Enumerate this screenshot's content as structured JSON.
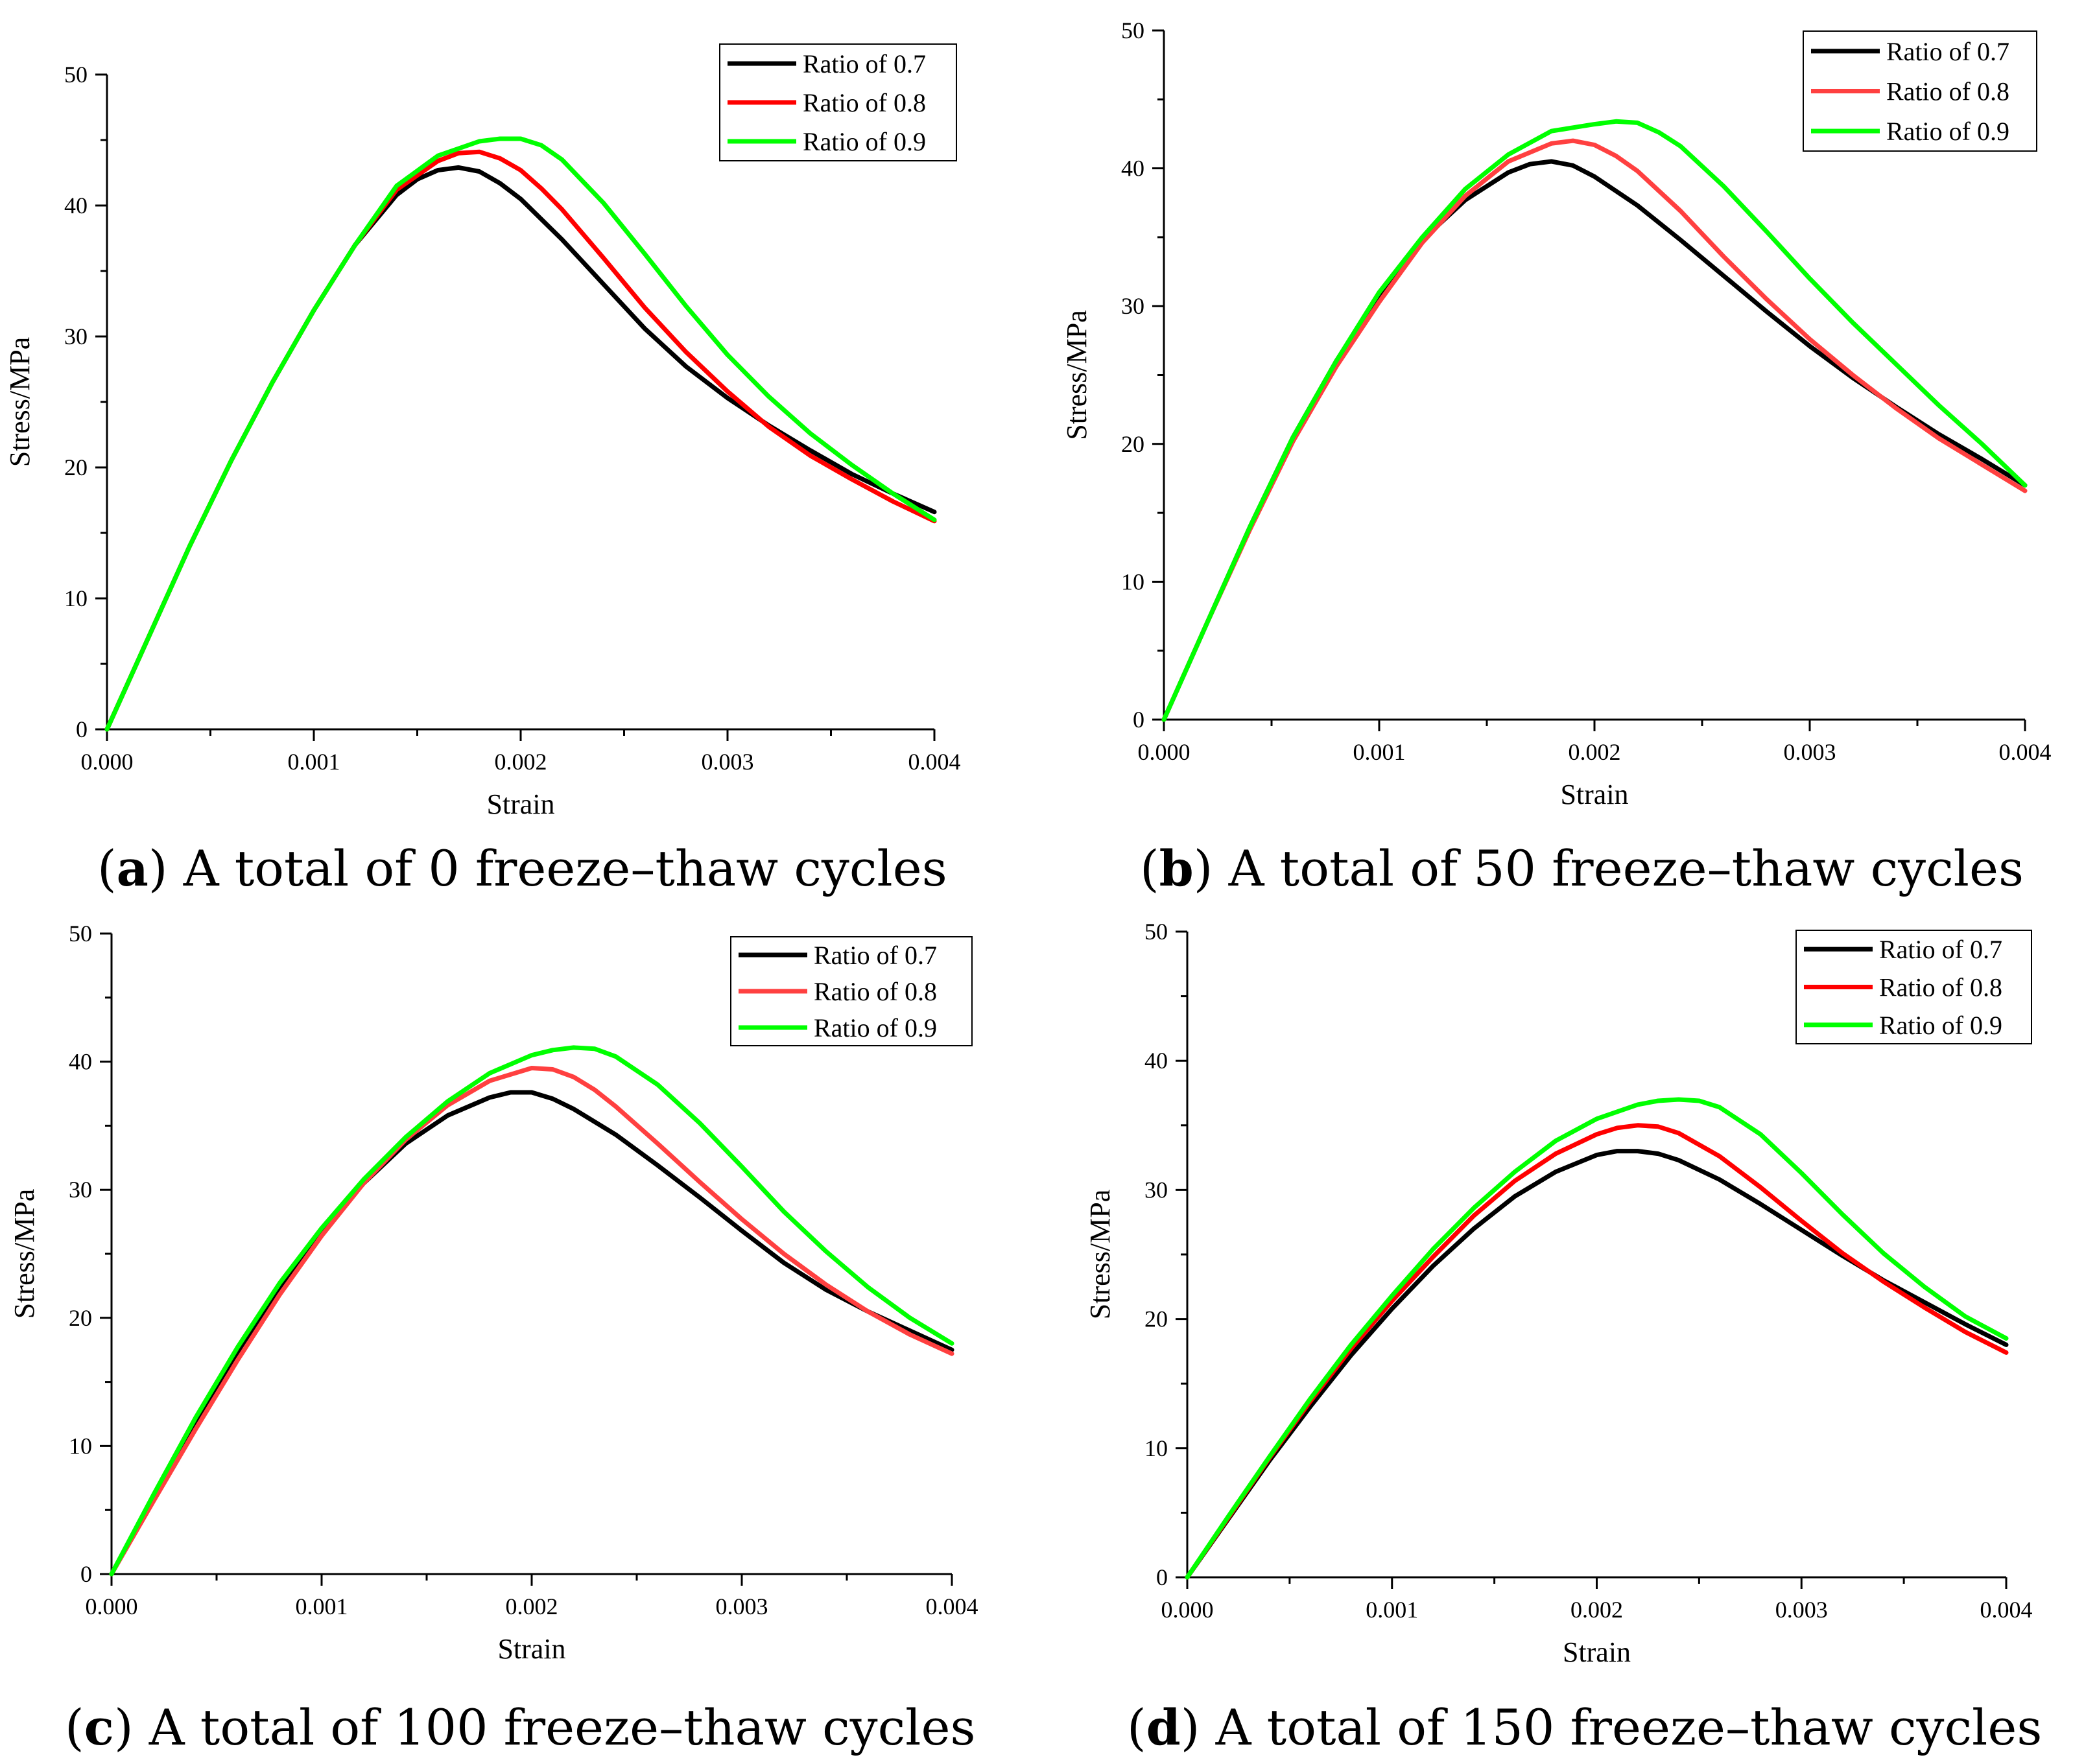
{
  "chart_data": [
    {
      "type": "line",
      "caption_letter": "a",
      "caption_text": " A total of 0 freeze–thaw cycles",
      "xlabel": "Strain",
      "ylabel": "Stress/MPa",
      "xlim": [
        0,
        0.004
      ],
      "ylim": [
        0,
        50
      ],
      "xticks": [
        "0.000",
        "0.001",
        "0.002",
        "0.003",
        "0.004"
      ],
      "yticks": [
        "0",
        "10",
        "20",
        "30",
        "40",
        "50"
      ],
      "legend_position": "top-right",
      "series": [
        {
          "name": "Ratio of 0.7",
          "color": "#000000",
          "x": [
            0,
            0.0002,
            0.0004,
            0.0006,
            0.0008,
            0.001,
            0.0012,
            0.0014,
            0.0015,
            0.0016,
            0.0017,
            0.0018,
            0.0019,
            0.002,
            0.0022,
            0.0024,
            0.0026,
            0.0028,
            0.003,
            0.0032,
            0.0034,
            0.0036,
            0.0038,
            0.004
          ],
          "y": [
            0,
            7,
            14,
            20.5,
            26.5,
            32,
            37,
            40.8,
            42,
            42.7,
            42.9,
            42.6,
            41.7,
            40.5,
            37.4,
            34,
            30.6,
            27.7,
            25.3,
            23.2,
            21.3,
            19.5,
            18,
            16.6
          ]
        },
        {
          "name": "Ratio of 0.8",
          "color": "#ff0000",
          "x": [
            0,
            0.0002,
            0.0004,
            0.0006,
            0.0008,
            0.001,
            0.0012,
            0.0014,
            0.0016,
            0.0017,
            0.0018,
            0.0019,
            0.002,
            0.0021,
            0.0022,
            0.0024,
            0.0026,
            0.0028,
            0.003,
            0.0032,
            0.0034,
            0.0036,
            0.0038,
            0.004
          ],
          "y": [
            0,
            7,
            14,
            20.5,
            26.5,
            32,
            37,
            41.2,
            43.4,
            44,
            44.1,
            43.6,
            42.7,
            41.3,
            39.7,
            36,
            32.2,
            28.8,
            25.8,
            23.1,
            20.9,
            19.1,
            17.4,
            15.9
          ]
        },
        {
          "name": "Ratio of 0.9",
          "color": "#00ff00",
          "x": [
            0,
            0.0002,
            0.0004,
            0.0006,
            0.0008,
            0.001,
            0.0012,
            0.0014,
            0.0016,
            0.0018,
            0.0019,
            0.002,
            0.0021,
            0.0022,
            0.0024,
            0.0026,
            0.0028,
            0.003,
            0.0032,
            0.0034,
            0.0036,
            0.0038,
            0.004
          ],
          "y": [
            0,
            7,
            14,
            20.5,
            26.5,
            32,
            37,
            41.5,
            43.8,
            44.9,
            45.1,
            45.1,
            44.6,
            43.5,
            40.2,
            36.3,
            32.3,
            28.6,
            25.4,
            22.6,
            20.2,
            18,
            16
          ]
        }
      ]
    },
    {
      "type": "line",
      "caption_letter": "b",
      "caption_text": " A total of 50 freeze–thaw cycles",
      "xlabel": "Strain",
      "ylabel": "Stress/MPa",
      "xlim": [
        0,
        0.004
      ],
      "ylim": [
        0,
        50
      ],
      "xticks": [
        "0.000",
        "0.001",
        "0.002",
        "0.003",
        "0.004"
      ],
      "yticks": [
        "0",
        "10",
        "20",
        "30",
        "40",
        "50"
      ],
      "legend_position": "top-right",
      "series": [
        {
          "name": "Ratio of 0.7",
          "color": "#000000",
          "x": [
            0,
            0.0002,
            0.0004,
            0.0006,
            0.0008,
            0.001,
            0.0012,
            0.0014,
            0.0016,
            0.0017,
            0.0018,
            0.0019,
            0.002,
            0.0022,
            0.0024,
            0.0026,
            0.0028,
            0.003,
            0.0032,
            0.0034,
            0.0036,
            0.0038,
            0.004
          ],
          "y": [
            0,
            7,
            14,
            20.5,
            26,
            30.8,
            34.8,
            37.7,
            39.7,
            40.3,
            40.5,
            40.2,
            39.4,
            37.3,
            34.8,
            32.2,
            29.6,
            27.1,
            24.8,
            22.7,
            20.7,
            18.9,
            17
          ]
        },
        {
          "name": "Ratio of 0.8",
          "color": "#ff4040",
          "x": [
            0,
            0.0002,
            0.0004,
            0.0006,
            0.0008,
            0.001,
            0.0012,
            0.0014,
            0.0016,
            0.0018,
            0.0019,
            0.002,
            0.0021,
            0.0022,
            0.0024,
            0.0026,
            0.0028,
            0.003,
            0.0032,
            0.0034,
            0.0036,
            0.0038,
            0.004
          ],
          "y": [
            0,
            7,
            13.8,
            20.2,
            25.6,
            30.3,
            34.6,
            38,
            40.5,
            41.8,
            42,
            41.7,
            40.9,
            39.8,
            36.9,
            33.6,
            30.5,
            27.6,
            25,
            22.6,
            20.4,
            18.5,
            16.6
          ]
        },
        {
          "name": "Ratio of 0.9",
          "color": "#00ff00",
          "x": [
            0,
            0.0002,
            0.0004,
            0.0006,
            0.0008,
            0.001,
            0.0012,
            0.0014,
            0.0016,
            0.0018,
            0.002,
            0.0021,
            0.0022,
            0.0023,
            0.0024,
            0.0026,
            0.0028,
            0.003,
            0.0032,
            0.0034,
            0.0036,
            0.0038,
            0.004
          ],
          "y": [
            0,
            7,
            14,
            20.5,
            26,
            31,
            35,
            38.5,
            41,
            42.7,
            43.2,
            43.4,
            43.3,
            42.6,
            41.6,
            38.7,
            35.4,
            32,
            28.8,
            25.8,
            22.8,
            20,
            17
          ]
        }
      ]
    },
    {
      "type": "line",
      "caption_letter": "c",
      "caption_text": " A total of 100 freeze–thaw cycles",
      "xlabel": "Strain",
      "ylabel": "Stress/MPa",
      "xlim": [
        0,
        0.004
      ],
      "ylim": [
        0,
        50
      ],
      "xticks": [
        "0.000",
        "0.001",
        "0.002",
        "0.003",
        "0.004"
      ],
      "yticks": [
        "0",
        "10",
        "20",
        "30",
        "40",
        "50"
      ],
      "legend_position": "top-right",
      "series": [
        {
          "name": "Ratio of 0.7",
          "color": "#000000",
          "x": [
            0,
            0.0002,
            0.0004,
            0.0006,
            0.0008,
            0.001,
            0.0012,
            0.0014,
            0.0016,
            0.0018,
            0.0019,
            0.002,
            0.0021,
            0.0022,
            0.0024,
            0.0026,
            0.0028,
            0.003,
            0.0032,
            0.0034,
            0.0036,
            0.0038,
            0.004
          ],
          "y": [
            0,
            6,
            11.8,
            17.2,
            22.2,
            26.7,
            30.5,
            33.6,
            35.8,
            37.2,
            37.6,
            37.6,
            37.1,
            36.3,
            34.3,
            31.9,
            29.4,
            26.8,
            24.3,
            22.2,
            20.5,
            19,
            17.5
          ]
        },
        {
          "name": "Ratio of 0.8",
          "color": "#ff4040",
          "x": [
            0,
            0.0002,
            0.0004,
            0.0006,
            0.0008,
            0.001,
            0.0012,
            0.0014,
            0.0016,
            0.0018,
            0.002,
            0.0021,
            0.0022,
            0.0023,
            0.0024,
            0.0026,
            0.0028,
            0.003,
            0.0032,
            0.0034,
            0.0036,
            0.0038,
            0.004
          ],
          "y": [
            0,
            5.7,
            11.3,
            16.7,
            21.8,
            26.4,
            30.5,
            33.9,
            36.6,
            38.5,
            39.5,
            39.4,
            38.8,
            37.8,
            36.5,
            33.6,
            30.6,
            27.7,
            25,
            22.6,
            20.5,
            18.7,
            17.2
          ]
        },
        {
          "name": "Ratio of 0.9",
          "color": "#00ff00",
          "x": [
            0,
            0.0002,
            0.0004,
            0.0006,
            0.0008,
            0.001,
            0.0012,
            0.0014,
            0.0016,
            0.0018,
            0.002,
            0.0021,
            0.0022,
            0.0023,
            0.0024,
            0.0026,
            0.0028,
            0.003,
            0.0032,
            0.0034,
            0.0036,
            0.0038,
            0.004
          ],
          "y": [
            0,
            6.2,
            12.2,
            17.7,
            22.7,
            27,
            30.8,
            34.1,
            36.9,
            39.1,
            40.5,
            40.9,
            41.1,
            41,
            40.4,
            38.2,
            35.2,
            31.8,
            28.3,
            25.2,
            22.4,
            20,
            18
          ]
        }
      ]
    },
    {
      "type": "line",
      "caption_letter": "d",
      "caption_text": " A total of 150 freeze–thaw cycles",
      "xlabel": "Strain",
      "ylabel": "Stress/MPa",
      "xlim": [
        0,
        0.004
      ],
      "ylim": [
        0,
        50
      ],
      "xticks": [
        "0.000",
        "0.001",
        "0.002",
        "0.003",
        "0.004"
      ],
      "yticks": [
        "0",
        "10",
        "20",
        "30",
        "40",
        "50"
      ],
      "legend_position": "top-right",
      "series": [
        {
          "name": "Ratio of 0.7",
          "color": "#000000",
          "x": [
            0,
            0.0002,
            0.0004,
            0.0006,
            0.0008,
            0.001,
            0.0012,
            0.0014,
            0.0016,
            0.0018,
            0.002,
            0.0021,
            0.0022,
            0.0023,
            0.0024,
            0.0026,
            0.0028,
            0.003,
            0.0032,
            0.0034,
            0.0036,
            0.0038,
            0.004
          ],
          "y": [
            0,
            4.5,
            9,
            13.2,
            17.2,
            20.8,
            24.1,
            27,
            29.5,
            31.4,
            32.7,
            33,
            33,
            32.8,
            32.3,
            30.8,
            28.9,
            26.9,
            24.9,
            23,
            21.3,
            19.6,
            18
          ]
        },
        {
          "name": "Ratio of 0.8",
          "color": "#ff0000",
          "x": [
            0,
            0.0002,
            0.0004,
            0.0006,
            0.0008,
            0.001,
            0.0012,
            0.0014,
            0.0016,
            0.0018,
            0.002,
            0.0021,
            0.0022,
            0.0023,
            0.0024,
            0.0026,
            0.0028,
            0.003,
            0.0032,
            0.0034,
            0.0036,
            0.0038,
            0.004
          ],
          "y": [
            0,
            4.6,
            9.2,
            13.6,
            17.7,
            21.4,
            24.8,
            28,
            30.7,
            32.8,
            34.3,
            34.8,
            35,
            34.9,
            34.4,
            32.6,
            30.2,
            27.6,
            25.1,
            22.9,
            20.9,
            19,
            17.4
          ]
        },
        {
          "name": "Ratio of 0.9",
          "color": "#00ff00",
          "x": [
            0,
            0.0002,
            0.0004,
            0.0006,
            0.0008,
            0.001,
            0.0012,
            0.0014,
            0.0016,
            0.0018,
            0.002,
            0.0022,
            0.0023,
            0.0024,
            0.0025,
            0.0026,
            0.0028,
            0.003,
            0.0032,
            0.0034,
            0.0036,
            0.0038,
            0.004
          ],
          "y": [
            0,
            4.7,
            9.3,
            13.8,
            18,
            21.8,
            25.4,
            28.6,
            31.4,
            33.8,
            35.5,
            36.6,
            36.9,
            37,
            36.9,
            36.4,
            34.3,
            31.3,
            28.1,
            25.1,
            22.5,
            20.2,
            18.5
          ]
        }
      ]
    }
  ]
}
